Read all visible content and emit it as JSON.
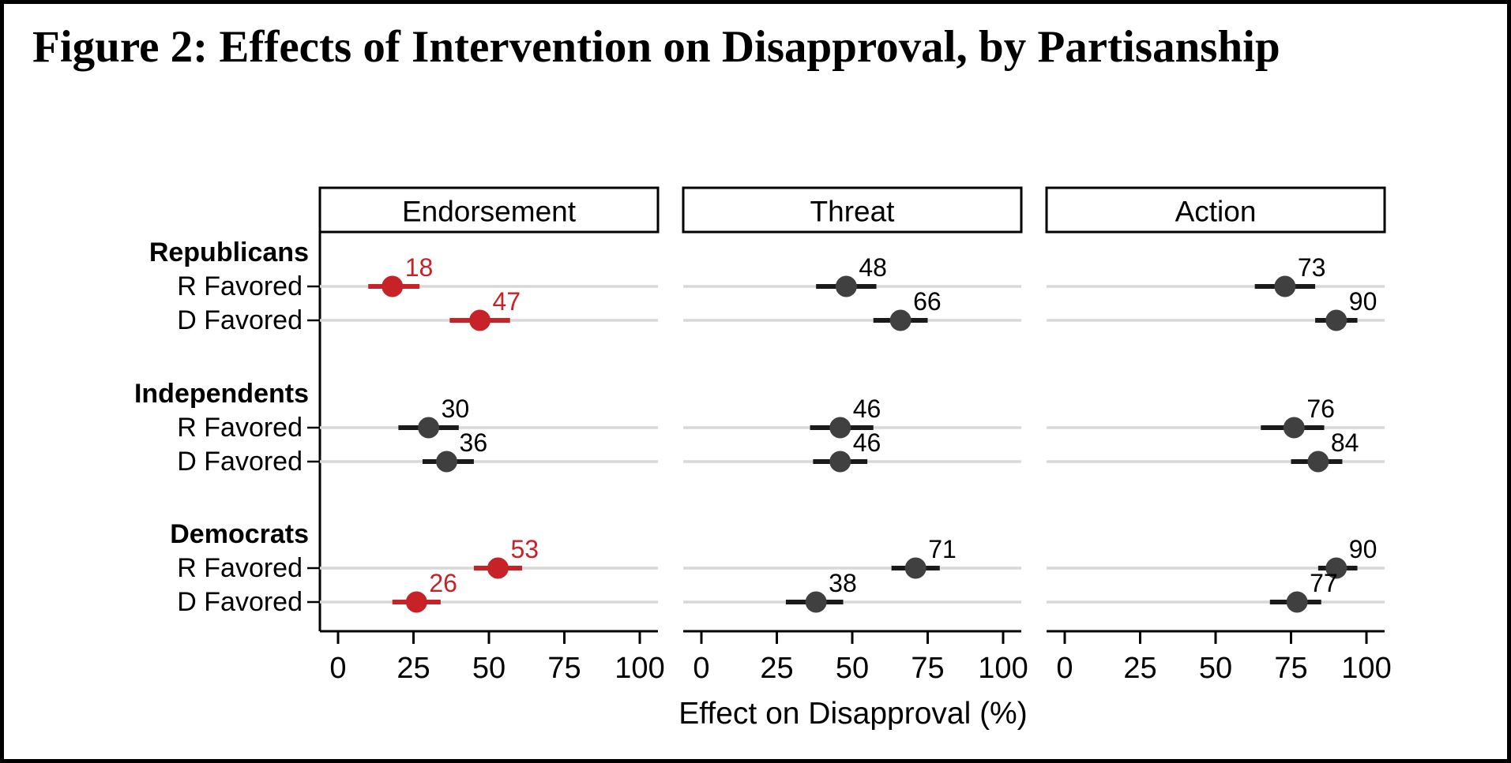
{
  "title": "Figure 2: Effects of Intervention on Disapproval, by Partisanship",
  "chart_data": {
    "type": "scatter",
    "subtype": "dot_with_ci_coefficient_plot",
    "title": "Figure 2: Effects of Intervention on Disapproval, by Partisanship",
    "xlabel": "Effect on Disapproval (%)",
    "xticks": [
      0,
      25,
      50,
      75,
      100
    ],
    "xlim": [
      -6,
      106
    ],
    "grid": "light horizontal gridline at each data row",
    "legend_position": "none",
    "row_groups": [
      {
        "group": "Republicans",
        "rows": [
          "R Favored",
          "D Favored"
        ]
      },
      {
        "group": "Independents",
        "rows": [
          "R Favored",
          "D Favored"
        ]
      },
      {
        "group": "Democrats",
        "rows": [
          "R Favored",
          "D Favored"
        ]
      }
    ],
    "panels": [
      {
        "name": "Endorsement",
        "points": [
          {
            "group": "Republicans",
            "row": "R Favored",
            "value": 18,
            "ci_low": 10,
            "ci_high": 27,
            "color_key": "red"
          },
          {
            "group": "Republicans",
            "row": "D Favored",
            "value": 47,
            "ci_low": 37,
            "ci_high": 57,
            "color_key": "red"
          },
          {
            "group": "Independents",
            "row": "R Favored",
            "value": 30,
            "ci_low": 20,
            "ci_high": 40,
            "color_key": "gray"
          },
          {
            "group": "Independents",
            "row": "D Favored",
            "value": 36,
            "ci_low": 28,
            "ci_high": 45,
            "color_key": "gray"
          },
          {
            "group": "Democrats",
            "row": "R Favored",
            "value": 53,
            "ci_low": 45,
            "ci_high": 61,
            "color_key": "red"
          },
          {
            "group": "Democrats",
            "row": "D Favored",
            "value": 26,
            "ci_low": 18,
            "ci_high": 34,
            "color_key": "red"
          }
        ]
      },
      {
        "name": "Threat",
        "points": [
          {
            "group": "Republicans",
            "row": "R Favored",
            "value": 48,
            "ci_low": 38,
            "ci_high": 58,
            "color_key": "gray"
          },
          {
            "group": "Republicans",
            "row": "D Favored",
            "value": 66,
            "ci_low": 57,
            "ci_high": 75,
            "color_key": "gray"
          },
          {
            "group": "Independents",
            "row": "R Favored",
            "value": 46,
            "ci_low": 36,
            "ci_high": 57,
            "color_key": "gray"
          },
          {
            "group": "Independents",
            "row": "D Favored",
            "value": 46,
            "ci_low": 37,
            "ci_high": 55,
            "color_key": "gray"
          },
          {
            "group": "Democrats",
            "row": "R Favored",
            "value": 71,
            "ci_low": 63,
            "ci_high": 79,
            "color_key": "gray"
          },
          {
            "group": "Democrats",
            "row": "D Favored",
            "value": 38,
            "ci_low": 28,
            "ci_high": 47,
            "color_key": "gray"
          }
        ]
      },
      {
        "name": "Action",
        "points": [
          {
            "group": "Republicans",
            "row": "R Favored",
            "value": 73,
            "ci_low": 63,
            "ci_high": 83,
            "color_key": "gray"
          },
          {
            "group": "Republicans",
            "row": "D Favored",
            "value": 90,
            "ci_low": 83,
            "ci_high": 97,
            "color_key": "gray"
          },
          {
            "group": "Independents",
            "row": "R Favored",
            "value": 76,
            "ci_low": 65,
            "ci_high": 86,
            "color_key": "gray"
          },
          {
            "group": "Independents",
            "row": "D Favored",
            "value": 84,
            "ci_low": 75,
            "ci_high": 92,
            "color_key": "gray"
          },
          {
            "group": "Democrats",
            "row": "R Favored",
            "value": 90,
            "ci_low": 84,
            "ci_high": 97,
            "color_key": "gray"
          },
          {
            "group": "Democrats",
            "row": "D Favored",
            "value": 77,
            "ci_low": 68,
            "ci_high": 85,
            "color_key": "gray"
          }
        ]
      }
    ],
    "colors": {
      "red": "#c62227",
      "gray": "#404040",
      "gray_bar": "#1a1a1a",
      "red_label": "#c62227",
      "gray_label": "#000000",
      "gridline": "#d8d8d8",
      "axis": "#000000",
      "panel_header_bg": "#ffffff",
      "panel_header_border": "#000000"
    }
  }
}
